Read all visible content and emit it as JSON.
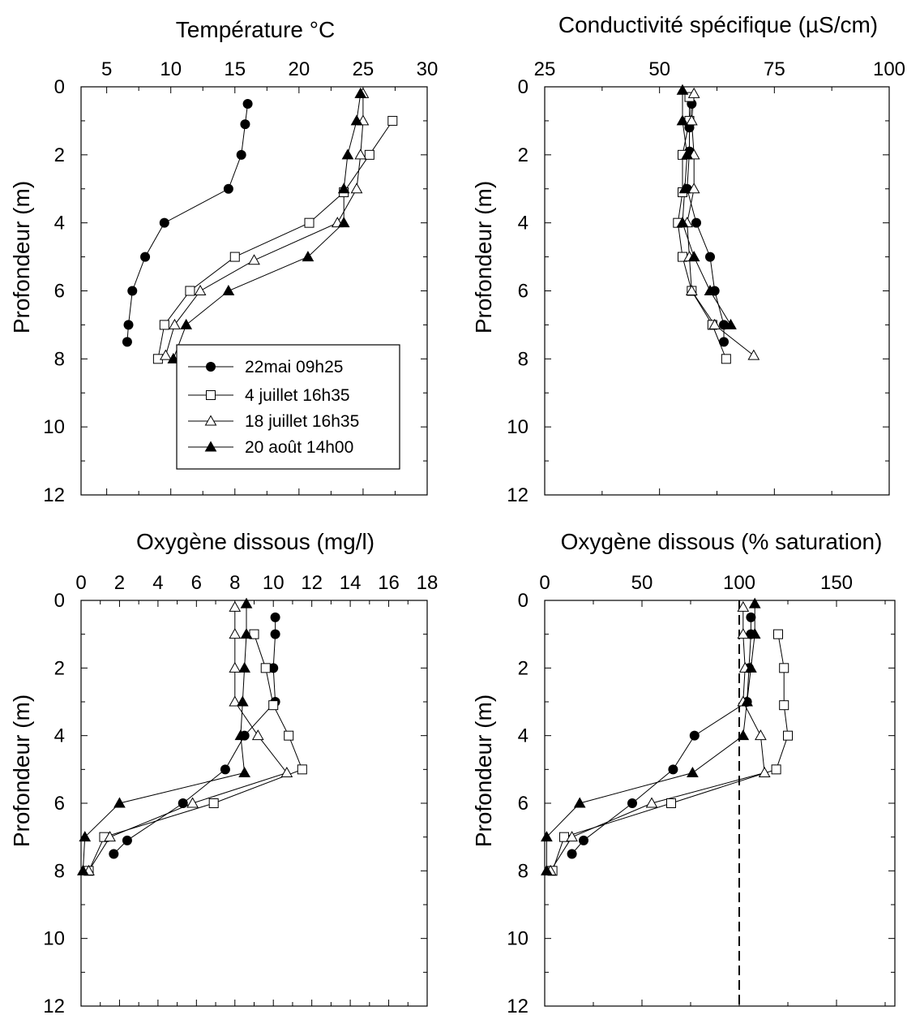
{
  "legend": {
    "series": [
      {
        "label": "22mai 09h25",
        "marker": "circle-filled"
      },
      {
        "label": "4 juillet 16h35",
        "marker": "square-open"
      },
      {
        "label": "18 juillet 16h35",
        "marker": "triangle-open"
      },
      {
        "label": "20 août 14h00",
        "marker": "triangle-filled"
      }
    ]
  },
  "chart_data": [
    {
      "id": "temperature",
      "type": "line",
      "title": "Température °C",
      "ylabel": "Profondeur (m)",
      "xlim": [
        3,
        30
      ],
      "ylim": [
        0,
        12
      ],
      "y_inverted": true,
      "x_axis_position": "top",
      "xticks": [
        5,
        10,
        15,
        20,
        25,
        30
      ],
      "yticks": [
        0,
        2,
        4,
        6,
        8,
        10,
        12
      ],
      "series": [
        {
          "name": "22mai 09h25",
          "points": [
            [
              16.0,
              0.5
            ],
            [
              15.8,
              1.1
            ],
            [
              15.5,
              2.0
            ],
            [
              14.5,
              3.0
            ],
            [
              9.5,
              4.0
            ],
            [
              8.0,
              5.0
            ],
            [
              7.0,
              6.0
            ],
            [
              6.7,
              7.0
            ],
            [
              6.6,
              7.5
            ]
          ]
        },
        {
          "name": "4 juillet 16h35",
          "points": [
            [
              27.3,
              1.0
            ],
            [
              25.5,
              2.0
            ],
            [
              23.5,
              3.1
            ],
            [
              20.8,
              4.0
            ],
            [
              15.0,
              5.0
            ],
            [
              11.5,
              6.0
            ],
            [
              9.5,
              7.0
            ],
            [
              9.0,
              8.0
            ]
          ]
        },
        {
          "name": "18 juillet 16h35",
          "points": [
            [
              25.0,
              0.2
            ],
            [
              25.0,
              1.0
            ],
            [
              24.8,
              2.0
            ],
            [
              24.5,
              3.0
            ],
            [
              23.0,
              4.0
            ],
            [
              16.5,
              5.1
            ],
            [
              12.3,
              6.0
            ],
            [
              10.3,
              7.0
            ],
            [
              9.6,
              7.9
            ]
          ]
        },
        {
          "name": "20 août 14h00",
          "points": [
            [
              24.8,
              0.2
            ],
            [
              24.5,
              1.0
            ],
            [
              23.8,
              2.0
            ],
            [
              23.5,
              3.0
            ],
            [
              23.5,
              4.0
            ],
            [
              20.7,
              5.0
            ],
            [
              14.5,
              6.0
            ],
            [
              11.2,
              7.0
            ],
            [
              10.2,
              8.0
            ]
          ]
        }
      ]
    },
    {
      "id": "conductivite",
      "type": "line",
      "title": "Conductivité spécifique (µS/cm)",
      "ylabel": "Profondeur (m)",
      "xlim": [
        25,
        100
      ],
      "ylim": [
        0,
        12
      ],
      "y_inverted": true,
      "x_axis_position": "top",
      "xticks": [
        25,
        50,
        75,
        100
      ],
      "yticks": [
        0,
        2,
        4,
        6,
        8,
        10,
        12
      ],
      "series": [
        {
          "name": "22mai 09h25",
          "points": [
            [
              57.0,
              0.5
            ],
            [
              56.5,
              1.2
            ],
            [
              56.5,
              1.9
            ],
            [
              56.0,
              3.0
            ],
            [
              58.0,
              4.0
            ],
            [
              61.0,
              5.0
            ],
            [
              62.0,
              6.0
            ],
            [
              64.0,
              7.0
            ],
            [
              64.0,
              7.5
            ]
          ]
        },
        {
          "name": "4 juillet 16h35",
          "points": [
            [
              56.5,
              0.3
            ],
            [
              56.5,
              1.0
            ],
            [
              55.0,
              2.0
            ],
            [
              55.0,
              3.1
            ],
            [
              54.0,
              4.0
            ],
            [
              55.0,
              5.0
            ],
            [
              57.0,
              6.0
            ],
            [
              61.5,
              7.0
            ],
            [
              64.5,
              8.0
            ]
          ]
        },
        {
          "name": "18 juillet 16h35",
          "points": [
            [
              57.5,
              0.2
            ],
            [
              57.0,
              1.0
            ],
            [
              57.5,
              2.0
            ],
            [
              57.5,
              3.0
            ],
            [
              56.0,
              4.0
            ],
            [
              56.5,
              5.0
            ],
            [
              57.0,
              6.0
            ],
            [
              62.0,
              7.0
            ],
            [
              70.5,
              7.9
            ]
          ]
        },
        {
          "name": "20 août 14h00",
          "points": [
            [
              55.0,
              0.1
            ],
            [
              55.0,
              1.0
            ],
            [
              56.0,
              2.0
            ],
            [
              55.5,
              3.0
            ],
            [
              55.0,
              4.0
            ],
            [
              57.5,
              5.0
            ],
            [
              61.0,
              6.0
            ],
            [
              65.5,
              7.0
            ]
          ]
        }
      ]
    },
    {
      "id": "oxygene-mg",
      "type": "line",
      "title": "Oxygène dissous (mg/l)",
      "ylabel": "Profondeur (m)",
      "xlim": [
        0,
        18
      ],
      "ylim": [
        0,
        12
      ],
      "y_inverted": true,
      "x_axis_position": "top",
      "xticks": [
        0,
        2,
        4,
        6,
        8,
        10,
        12,
        14,
        16,
        18
      ],
      "yticks": [
        0,
        2,
        4,
        6,
        8,
        10,
        12
      ],
      "series": [
        {
          "name": "22mai 09h25",
          "points": [
            [
              10.1,
              0.5
            ],
            [
              10.1,
              1.0
            ],
            [
              10.0,
              2.0
            ],
            [
              10.1,
              3.0
            ],
            [
              8.5,
              4.0
            ],
            [
              7.5,
              5.0
            ],
            [
              5.3,
              6.0
            ],
            [
              2.4,
              7.1
            ],
            [
              1.7,
              7.5
            ]
          ]
        },
        {
          "name": "4 juillet 16h35",
          "points": [
            [
              9.0,
              1.0
            ],
            [
              9.6,
              2.0
            ],
            [
              10.0,
              3.1
            ],
            [
              10.8,
              4.0
            ],
            [
              11.5,
              5.0
            ],
            [
              6.9,
              6.0
            ],
            [
              1.2,
              7.0
            ],
            [
              0.4,
              8.0
            ]
          ]
        },
        {
          "name": "18 juillet 16h35",
          "points": [
            [
              8.0,
              0.2
            ],
            [
              8.0,
              1.0
            ],
            [
              8.0,
              2.0
            ],
            [
              8.0,
              3.0
            ],
            [
              9.2,
              4.0
            ],
            [
              10.7,
              5.1
            ],
            [
              5.8,
              6.0
            ],
            [
              1.5,
              7.0
            ],
            [
              0.4,
              8.0
            ]
          ]
        },
        {
          "name": "20 août 14h00",
          "points": [
            [
              8.6,
              0.1
            ],
            [
              8.6,
              1.0
            ],
            [
              8.5,
              2.0
            ],
            [
              8.4,
              3.0
            ],
            [
              8.3,
              4.0
            ],
            [
              8.5,
              5.1
            ],
            [
              2.0,
              6.0
            ],
            [
              0.2,
              7.0
            ],
            [
              0.1,
              8.0
            ]
          ]
        }
      ]
    },
    {
      "id": "oxygene-sat",
      "type": "line",
      "title": "Oxygène dissous (% saturation)",
      "ylabel": "Profondeur (m)",
      "xlim": [
        0,
        180
      ],
      "ylim": [
        0,
        12
      ],
      "y_inverted": true,
      "x_axis_position": "top",
      "xticks": [
        0,
        50,
        100,
        150
      ],
      "yticks": [
        0,
        2,
        4,
        6,
        8,
        10,
        12
      ],
      "reference_line": {
        "x": 100,
        "style": "dashed"
      },
      "series": [
        {
          "name": "22mai 09h25",
          "points": [
            [
              106,
              0.5
            ],
            [
              106,
              1.0
            ],
            [
              105,
              2.0
            ],
            [
              104,
              3.0
            ],
            [
              77,
              4.0
            ],
            [
              66,
              5.0
            ],
            [
              45,
              6.0
            ],
            [
              20,
              7.1
            ],
            [
              14,
              7.5
            ]
          ]
        },
        {
          "name": "4 juillet 16h35",
          "points": [
            [
              120,
              1.0
            ],
            [
              123,
              2.0
            ],
            [
              123,
              3.1
            ],
            [
              125,
              4.0
            ],
            [
              119,
              5.0
            ],
            [
              65,
              6.0
            ],
            [
              10,
              7.0
            ],
            [
              4,
              8.0
            ]
          ]
        },
        {
          "name": "18 juillet 16h35",
          "points": [
            [
              102,
              0.2
            ],
            [
              102,
              1.0
            ],
            [
              103,
              2.0
            ],
            [
              102,
              3.0
            ],
            [
              111,
              4.0
            ],
            [
              113,
              5.1
            ],
            [
              55,
              6.0
            ],
            [
              14,
              7.0
            ],
            [
              3,
              8.0
            ]
          ]
        },
        {
          "name": "20 août 14h00",
          "points": [
            [
              108,
              0.1
            ],
            [
              108,
              1.0
            ],
            [
              106,
              2.0
            ],
            [
              104,
              3.0
            ],
            [
              102,
              4.0
            ],
            [
              76,
              5.1
            ],
            [
              18,
              6.0
            ],
            [
              1,
              7.0
            ],
            [
              1,
              8.0
            ]
          ]
        }
      ]
    }
  ]
}
